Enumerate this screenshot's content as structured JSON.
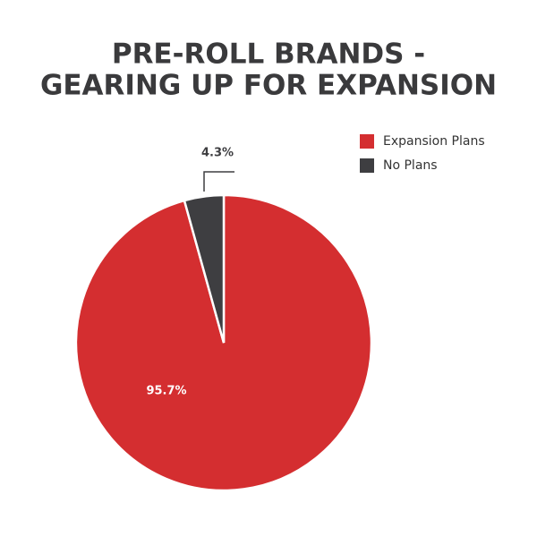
{
  "chart_data": {
    "type": "pie",
    "title": [
      "PRE-ROLL BRANDS -",
      "GEARING UP FOR EXPANSION"
    ],
    "series": [
      {
        "name": "Expansion Plans",
        "color": "#d42e30",
        "values": [
          95.7
        ],
        "value_labels": [
          "95.7%"
        ]
      },
      {
        "name": "No Plans",
        "color": "#3e3e41",
        "values": [
          4.3
        ],
        "value_labels": [
          "4.3%"
        ]
      }
    ],
    "legend": "top-right"
  }
}
